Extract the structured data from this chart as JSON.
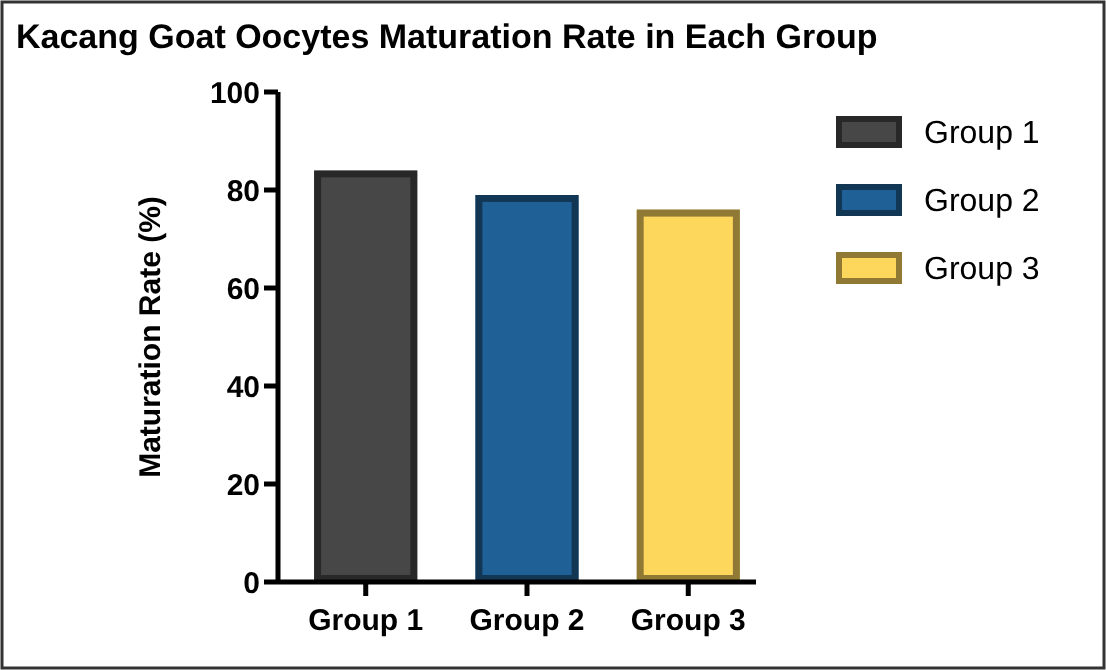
{
  "chart_data": {
    "type": "bar",
    "title": "Kacang Goat Oocytes Maturation Rate in Each Group",
    "ylabel": "Maturation Rate (%)",
    "categories": [
      "Group 1",
      "Group 2",
      "Group 3"
    ],
    "series": [
      {
        "name": "Group 1",
        "color": "#474747",
        "values": [
          84,
          null,
          null
        ]
      },
      {
        "name": "Group 2",
        "color": "#1f6197",
        "values": [
          null,
          79,
          null
        ]
      },
      {
        "name": "Group 3",
        "color": "#fdd65c",
        "values": [
          null,
          null,
          76
        ]
      }
    ],
    "ylim": [
      0,
      100
    ],
    "yticks": [
      0,
      20,
      40,
      60,
      80,
      100
    ],
    "legend": "right",
    "grid": false
  }
}
